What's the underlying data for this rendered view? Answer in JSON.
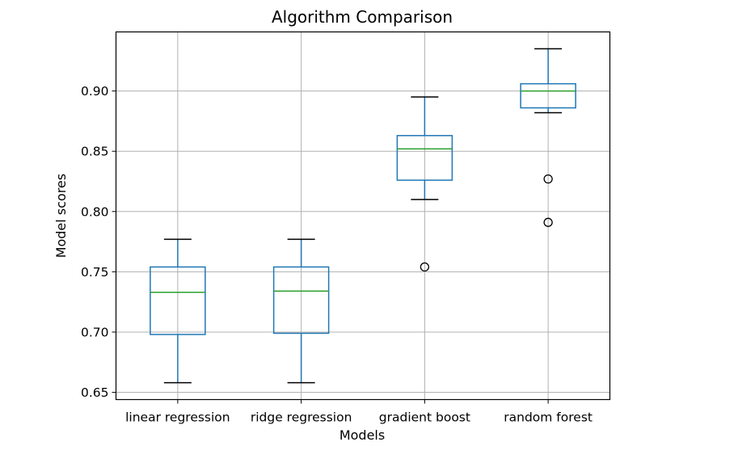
{
  "chart_data": {
    "type": "box",
    "title": "Algorithm Comparison",
    "xlabel": "Models",
    "ylabel": "Model scores",
    "ylim": [
      0.644,
      0.949
    ],
    "yticks": [
      0.65,
      0.7,
      0.75,
      0.8,
      0.85,
      0.9
    ],
    "ytick_labels": [
      "0.65",
      "0.70",
      "0.75",
      "0.80",
      "0.85",
      "0.90"
    ],
    "grid": true,
    "categories": [
      "linear regression",
      "ridge regression",
      "gradient boost",
      "random forest"
    ],
    "boxes": [
      {
        "whisker_low": 0.658,
        "q1": 0.698,
        "median": 0.733,
        "q3": 0.754,
        "whisker_high": 0.777,
        "outliers": []
      },
      {
        "whisker_low": 0.658,
        "q1": 0.699,
        "median": 0.734,
        "q3": 0.754,
        "whisker_high": 0.777,
        "outliers": []
      },
      {
        "whisker_low": 0.81,
        "q1": 0.826,
        "median": 0.852,
        "q3": 0.863,
        "whisker_high": 0.895,
        "outliers": [
          0.754
        ]
      },
      {
        "whisker_low": 0.882,
        "q1": 0.886,
        "median": 0.9,
        "q3": 0.906,
        "whisker_high": 0.935,
        "outliers": [
          0.827,
          0.791
        ]
      }
    ],
    "colors": {
      "box": "#1f77b4",
      "median": "#2ca02c",
      "whisker": "#1f77b4",
      "cap": "#000000",
      "outlier": "#000000",
      "grid": "#b0b0b0"
    }
  }
}
